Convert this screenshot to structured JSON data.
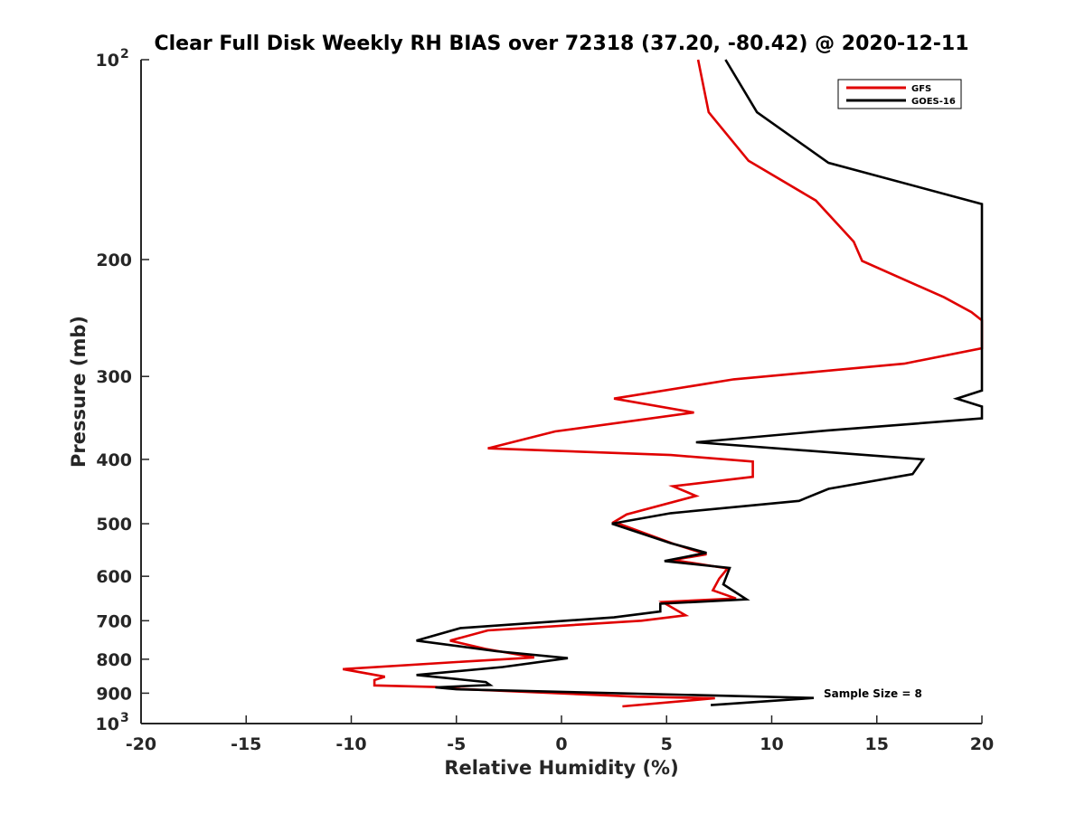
{
  "chart_data": {
    "type": "line",
    "title": "Clear Full Disk Weekly RH BIAS over 72318 (37.20, -80.42) @ 2020-12-11",
    "xlabel": "Relative Humidity (%)",
    "ylabel": "Pressure (mb)",
    "xlim": [
      -20,
      20
    ],
    "ylim": [
      100,
      1000
    ],
    "y_scale": "log",
    "y_reversed": true,
    "grid": false,
    "legend_position": "top-right",
    "x_ticks": [
      "-20",
      "-15",
      "-10",
      "-5",
      "0",
      "5",
      "10",
      "15",
      "20"
    ],
    "y_ticks": [
      {
        "value": 100,
        "base": "10",
        "exp": "2"
      },
      {
        "value": 200,
        "label": "200"
      },
      {
        "value": 300,
        "label": "300"
      },
      {
        "value": 400,
        "label": "400"
      },
      {
        "value": 500,
        "label": "500"
      },
      {
        "value": 600,
        "label": "600"
      },
      {
        "value": 700,
        "label": "700"
      },
      {
        "value": 800,
        "label": "800"
      },
      {
        "value": 900,
        "label": "900"
      },
      {
        "value": 1000,
        "base": "10",
        "exp": "3"
      }
    ],
    "annotation": "Sample Size = 8",
    "series": [
      {
        "name": "GFS",
        "color": "#e00000",
        "points": [
          [
            6.5,
            100
          ],
          [
            7.0,
            120
          ],
          [
            8.9,
            142
          ],
          [
            12.1,
            163
          ],
          [
            13.9,
            188
          ],
          [
            14.3,
            201
          ],
          [
            18.2,
            228
          ],
          [
            19.5,
            240
          ],
          [
            20.0,
            247
          ],
          [
            20.0,
            272
          ],
          [
            16.3,
            287
          ],
          [
            8.2,
            303
          ],
          [
            2.5,
            324
          ],
          [
            6.3,
            340
          ],
          [
            -0.3,
            363
          ],
          [
            -3.5,
            385
          ],
          [
            5.2,
            394
          ],
          [
            9.1,
            403
          ],
          [
            9.1,
            425
          ],
          [
            5.3,
            439
          ],
          [
            6.4,
            454
          ],
          [
            3.1,
            484
          ],
          [
            2.5,
            497
          ],
          [
            5.4,
            537
          ],
          [
            6.9,
            556
          ],
          [
            5.3,
            567
          ],
          [
            7.9,
            584
          ],
          [
            7.5,
            605
          ],
          [
            7.2,
            630
          ],
          [
            8.3,
            648
          ],
          [
            4.8,
            656
          ],
          [
            5.9,
            687
          ],
          [
            3.8,
            700
          ],
          [
            -3.5,
            724
          ],
          [
            -5.3,
            750
          ],
          [
            -3.6,
            772
          ],
          [
            -1.3,
            795
          ],
          [
            -5.0,
            808
          ],
          [
            -10.4,
            828
          ],
          [
            -8.4,
            850
          ],
          [
            -8.9,
            860
          ],
          [
            -8.9,
            876
          ],
          [
            -6.0,
            881
          ],
          [
            -4.8,
            887
          ],
          [
            3.6,
            911
          ],
          [
            7.3,
            916
          ],
          [
            2.9,
            942
          ]
        ]
      },
      {
        "name": "GOES-16",
        "color": "#000000",
        "points": [
          [
            7.8,
            100
          ],
          [
            9.3,
            120
          ],
          [
            12.7,
            143
          ],
          [
            20.0,
            165
          ],
          [
            20.0,
            315
          ],
          [
            18.8,
            324
          ],
          [
            20.0,
            333
          ],
          [
            20.0,
            347
          ],
          [
            12.6,
            362
          ],
          [
            6.4,
            377
          ],
          [
            17.2,
            400
          ],
          [
            16.7,
            421
          ],
          [
            12.7,
            443
          ],
          [
            11.3,
            462
          ],
          [
            5.2,
            482
          ],
          [
            2.4,
            500
          ],
          [
            5.2,
            535
          ],
          [
            6.9,
            553
          ],
          [
            4.9,
            569
          ],
          [
            8.0,
            583
          ],
          [
            7.7,
            617
          ],
          [
            8.8,
            650
          ],
          [
            4.7,
            660
          ],
          [
            4.7,
            678
          ],
          [
            2.5,
            692
          ],
          [
            -4.8,
            718
          ],
          [
            -6.9,
            750
          ],
          [
            -3.1,
            778
          ],
          [
            0.3,
            797
          ],
          [
            -2.8,
            822
          ],
          [
            -6.9,
            845
          ],
          [
            -3.6,
            866
          ],
          [
            -3.4,
            875
          ],
          [
            -6.0,
            882
          ],
          [
            -5.0,
            888
          ],
          [
            12.0,
            915
          ],
          [
            7.1,
            938
          ]
        ]
      }
    ]
  }
}
